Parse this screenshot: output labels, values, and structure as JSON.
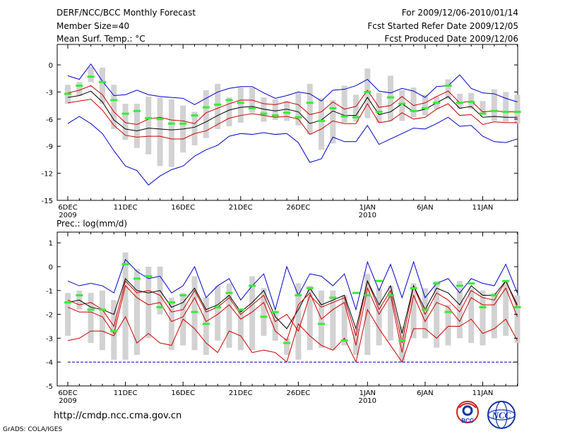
{
  "header": {
    "title": "DERF/NCC/BCC Monthly Forecast",
    "member_size": "Member Size=40",
    "variable": "Mean Surf. Temp.: °C",
    "period": "For 2009/12/06-2010/01/14",
    "start_date": "Fcst Started Refer Date 2009/12/05",
    "produced_date": "Fcst Produced Date 2009/12/06"
  },
  "footer": {
    "url": "http://cmdp.ncc.cma.gov.cn",
    "credit": "GrADS: COLA/IGES",
    "logo1_text": "BCC",
    "logo2_text": "NCC"
  },
  "colors": {
    "box": "#d2d2d2",
    "ensemble_max_min": "#0000cc",
    "spread": "#cc0000",
    "mean": "#000000",
    "median": "#33ee33",
    "logo_red": "#cc2222",
    "logo_blue": "#1133aa"
  },
  "chart_data": [
    {
      "type": "line",
      "title": "Mean Surf. Temp.: °C",
      "days": 40,
      "x_tick_labels": [
        {
          "day": 0,
          "label": "6DEC",
          "sub": "2009"
        },
        {
          "day": 5,
          "label": "11DEC"
        },
        {
          "day": 10,
          "label": "16DEC"
        },
        {
          "day": 15,
          "label": "21DEC"
        },
        {
          "day": 20,
          "label": "26DEC"
        },
        {
          "day": 26,
          "label": "1JAN",
          "sub": "2010"
        },
        {
          "day": 31,
          "label": "6JAN"
        },
        {
          "day": 36,
          "label": "11JAN"
        }
      ],
      "ylim": [
        -15,
        1.5
      ],
      "yticks": [
        0,
        -3,
        -6,
        -9,
        -12,
        -15
      ],
      "series": [
        {
          "name": "max",
          "color": "blue",
          "values": [
            -1.2,
            -1.6,
            0.1,
            -1.8,
            -3.4,
            -3.3,
            -2.8,
            -3.3,
            -3.5,
            -3.6,
            -3.7,
            -4.4,
            -3.7,
            -3.0,
            -2.6,
            -2.4,
            -2.4,
            -3.1,
            -3.7,
            -3.4,
            -3.0,
            -3.2,
            -4.0,
            -2.8,
            -2.7,
            -2.3,
            -1.6,
            -2.9,
            -3.1,
            -2.6,
            -2.9,
            -3.6,
            -2.4,
            -2.3,
            -1.1,
            -2.6,
            -3.1,
            -3.2,
            -3.7,
            -4.1
          ]
        },
        {
          "name": "upper",
          "color": "red",
          "values": [
            -3.1,
            -2.8,
            -2.3,
            -3.3,
            -5.2,
            -6.4,
            -6.6,
            -6.0,
            -5.8,
            -6.1,
            -6.2,
            -6.5,
            -5.3,
            -4.8,
            -4.3,
            -3.9,
            -3.9,
            -4.3,
            -4.4,
            -4.1,
            -4.4,
            -5.5,
            -5.2,
            -4.1,
            -4.9,
            -4.6,
            -2.8,
            -4.7,
            -4.5,
            -3.5,
            -4.5,
            -4.2,
            -3.5,
            -2.9,
            -4.2,
            -4.0,
            -5.2,
            -5.1,
            -5.2,
            -5.2
          ]
        },
        {
          "name": "mean",
          "color": "black",
          "values": [
            -3.6,
            -3.4,
            -2.9,
            -4.1,
            -6.1,
            -7.1,
            -7.3,
            -7.0,
            -7.1,
            -7.2,
            -7.1,
            -6.9,
            -6.3,
            -5.6,
            -5.0,
            -4.7,
            -4.6,
            -4.9,
            -5.1,
            -4.9,
            -5.2,
            -6.5,
            -6.1,
            -5.1,
            -5.6,
            -5.6,
            -3.6,
            -5.5,
            -5.2,
            -4.3,
            -5.2,
            -4.9,
            -4.2,
            -3.5,
            -4.8,
            -4.6,
            -5.8,
            -5.7,
            -5.8,
            -5.8
          ]
        },
        {
          "name": "lower",
          "color": "red",
          "values": [
            -4.2,
            -4.0,
            -3.8,
            -5.0,
            -6.7,
            -7.8,
            -8.0,
            -7.9,
            -7.9,
            -8.2,
            -8.2,
            -7.6,
            -7.3,
            -6.6,
            -5.9,
            -5.6,
            -5.4,
            -5.6,
            -5.8,
            -5.7,
            -6.0,
            -7.7,
            -7.1,
            -6.2,
            -6.5,
            -6.5,
            -4.3,
            -6.4,
            -6.2,
            -5.3,
            -6.0,
            -5.8,
            -4.9,
            -4.3,
            -5.6,
            -5.5,
            -6.6,
            -6.3,
            -6.4,
            -6.4
          ]
        },
        {
          "name": "min",
          "color": "blue",
          "values": [
            -6.5,
            -5.7,
            -6.5,
            -7.6,
            -9.5,
            -11.2,
            -11.7,
            -13.3,
            -12.3,
            -11.6,
            -11.2,
            -10.1,
            -9.4,
            -8.9,
            -7.9,
            -7.6,
            -7.7,
            -7.5,
            -7.7,
            -7.6,
            -8.6,
            -10.8,
            -10.4,
            -8.0,
            -8.5,
            -8.5,
            -6.7,
            -8.8,
            -8.2,
            -7.6,
            -7.0,
            -7.1,
            -6.5,
            -5.8,
            -6.8,
            -6.7,
            -7.9,
            -8.5,
            -8.6,
            -8.2
          ]
        },
        {
          "name": "median",
          "color": "green",
          "values": [
            -3.2,
            -2.3,
            -1.3,
            -1.9,
            -3.9,
            -5.4,
            -5.1,
            -5.9,
            -6.0,
            -6.5,
            -6.5,
            -5.6,
            -4.7,
            -4.4,
            -3.9,
            -4.2,
            -4.8,
            -5.4,
            -5.6,
            -5.3,
            -5.8,
            -4.2,
            -6.2,
            -4.8,
            -5.7,
            -5.8,
            -3.0,
            -5.2,
            -3.6,
            -4.3,
            -5.1,
            -4.8,
            -4.2,
            -2.3,
            -4.2,
            -4.1,
            -5.4,
            -5.1,
            -5.2,
            -5.2
          ]
        }
      ],
      "boxes": [
        [
          -2.2,
          -4.3
        ],
        [
          -1.9,
          -3.4
        ],
        [
          -0.2,
          -1.9
        ],
        [
          -0.3,
          -4.3
        ],
        [
          -2.2,
          -7.1
        ],
        [
          -4.3,
          -8.3
        ],
        [
          -4.3,
          -9.2
        ],
        [
          -3.5,
          -9.9
        ],
        [
          -3.6,
          -11.2
        ],
        [
          -3.8,
          -11.3
        ],
        [
          -4.5,
          -9.7
        ],
        [
          -5.2,
          -8.9
        ],
        [
          -2.8,
          -8.1
        ],
        [
          -2.1,
          -7.1
        ],
        [
          -3.6,
          -6.8
        ],
        [
          -2.5,
          -6.4
        ],
        [
          -2.5,
          -5.3
        ],
        [
          -3.6,
          -6.3
        ],
        [
          -3.8,
          -6.1
        ],
        [
          -4.0,
          -6.2
        ],
        [
          -3.1,
          -6.7
        ],
        [
          -2.1,
          -7.7
        ],
        [
          -3.7,
          -9.4
        ],
        [
          -3.9,
          -8.7
        ],
        [
          -2.3,
          -6.4
        ],
        [
          -3.3,
          -6.3
        ],
        [
          -0.4,
          -5.9
        ],
        [
          -3.1,
          -6.4
        ],
        [
          -1.2,
          -6.2
        ],
        [
          -2.8,
          -6.2
        ],
        [
          -2.5,
          -5.8
        ],
        [
          -3.3,
          -5.6
        ],
        [
          -3.5,
          -4.9
        ],
        [
          -1.6,
          -3.8
        ],
        [
          -3.2,
          -4.9
        ],
        [
          -3.1,
          -4.9
        ],
        [
          -4.0,
          -5.5
        ],
        [
          -2.7,
          -6.2
        ],
        [
          -3.0,
          -6.3
        ],
        [
          -3.3,
          -6.5
        ]
      ]
    },
    {
      "type": "line",
      "title": "Prec.: log(mm/d)",
      "days": 40,
      "x_tick_labels": [
        {
          "day": 0,
          "label": "6DEC",
          "sub": "2009"
        },
        {
          "day": 5,
          "label": "11DEC"
        },
        {
          "day": 10,
          "label": "16DEC"
        },
        {
          "day": 15,
          "label": "21DEC"
        },
        {
          "day": 20,
          "label": "26DEC"
        },
        {
          "day": 26,
          "label": "1JAN",
          "sub": "2010"
        },
        {
          "day": 31,
          "label": "6JAN"
        },
        {
          "day": 36,
          "label": "11JAN"
        }
      ],
      "ylim": [
        -5,
        1.3
      ],
      "yticks": [
        1,
        0,
        -1,
        -2,
        -3,
        -4,
        -5
      ],
      "baseline": -4,
      "series": [
        {
          "name": "max",
          "color": "blue",
          "values": [
            -0.6,
            -0.8,
            -0.7,
            -0.8,
            -1.1,
            0.3,
            -0.2,
            -0.5,
            -0.4,
            -1.1,
            -0.8,
            0.0,
            -1.3,
            -0.8,
            -0.5,
            -1.4,
            -0.8,
            -0.3,
            -1.8,
            0.0,
            -1.2,
            -0.3,
            -0.4,
            -0.8,
            -0.3,
            -1.8,
            0.2,
            -1.0,
            0.1,
            -1.3,
            0.2,
            -1.3,
            -0.7,
            -0.5,
            -1.1,
            -0.5,
            -0.7,
            -0.8,
            0.1,
            -1.1
          ]
        },
        {
          "name": "upper",
          "color": "red",
          "values": [
            -1.4,
            -1.6,
            -1.5,
            -1.8,
            -2.5,
            -0.6,
            -1.1,
            -1.0,
            -1.2,
            -1.9,
            -1.8,
            -1.0,
            -1.9,
            -1.7,
            -1.3,
            -2.0,
            -1.6,
            -1.2,
            -2.3,
            -2.0,
            -2.7,
            -1.2,
            -1.7,
            -1.5,
            -1.3,
            -2.9,
            -0.6,
            -1.8,
            -1.0,
            -3.2,
            -0.8,
            -2.0,
            -1.1,
            -1.4,
            -1.9,
            -1.0,
            -1.3,
            -1.4,
            -0.6,
            -1.7
          ]
        },
        {
          "name": "mean",
          "color": "black",
          "values": [
            -1.5,
            -1.4,
            -1.7,
            -1.8,
            -2.0,
            -0.5,
            -1.0,
            -1.1,
            -1.0,
            -1.7,
            -1.5,
            -0.9,
            -1.8,
            -1.6,
            -1.2,
            -1.9,
            -1.5,
            -1.0,
            -2.1,
            -2.6,
            -1.8,
            -0.9,
            -1.6,
            -1.4,
            -1.2,
            -2.6,
            -0.6,
            -1.6,
            -0.8,
            -2.8,
            -0.8,
            -1.8,
            -0.9,
            -1.1,
            -1.6,
            -0.8,
            -1.2,
            -1.2,
            -0.6,
            -1.6
          ]
        },
        {
          "name": "lower",
          "color": "red",
          "values": [
            -1.7,
            -1.9,
            -1.9,
            -2.1,
            -2.8,
            -0.8,
            -1.3,
            -1.6,
            -1.5,
            -2.3,
            -2.1,
            -1.3,
            -2.3,
            -2.0,
            -1.6,
            -2.2,
            -1.9,
            -1.5,
            -2.7,
            -3.1,
            -1.6,
            -1.1,
            -2.2,
            -1.8,
            -1.5,
            -3.3,
            -0.9,
            -2.0,
            -1.2,
            -3.6,
            -1.2,
            -2.3,
            -1.5,
            -1.7,
            -2.3,
            -1.3,
            -1.6,
            -1.6,
            -0.9,
            -2.1
          ]
        },
        {
          "name": "min",
          "color": "red",
          "values": [
            -3.1,
            -3.0,
            -2.7,
            -2.7,
            -2.9,
            -2.1,
            -3.2,
            -2.8,
            -3.2,
            -3.3,
            -2.2,
            -2.6,
            -3.2,
            -3.6,
            -2.7,
            -2.9,
            -3.6,
            -3.5,
            -3.6,
            -4.0,
            -2.4,
            -2.9,
            -3.3,
            -3.5,
            -3.0,
            -4.0,
            -1.8,
            -2.6,
            -3.3,
            -4.0,
            -2.6,
            -2.6,
            -3.0,
            -2.5,
            -2.5,
            -2.2,
            -2.8,
            -2.6,
            -2.2,
            -3.1
          ]
        },
        {
          "name": "median",
          "color": "green",
          "values": [
            -1.5,
            -1.2,
            -1.8,
            -1.8,
            -2.7,
            0.1,
            -0.5,
            -0.4,
            -1.7,
            -1.5,
            -1.2,
            -1.9,
            -2.4,
            -1.7,
            -1.1,
            -1.8,
            -0.8,
            -2.1,
            -1.9,
            -3.2,
            -1.2,
            -0.9,
            -2.4,
            -1.3,
            -3.1,
            -1.1,
            -1.2,
            -0.6,
            -1.2,
            -3.1,
            -0.9,
            -1.8,
            -0.7,
            -1.9,
            -0.8,
            -0.7,
            -1.7,
            -1.2,
            -0.6,
            -1.7
          ]
        }
      ],
      "boxes": [
        [
          -1.1,
          -2.9
        ],
        [
          -1.0,
          -1.8
        ],
        [
          -1.1,
          -3.2
        ],
        [
          -1.0,
          -3.5
        ],
        [
          -1.4,
          -3.9
        ],
        [
          0.6,
          -3.9
        ],
        [
          -0.1,
          -3.7
        ],
        [
          0.0,
          -3.0
        ],
        [
          0.0,
          -2.0
        ],
        [
          -1.3,
          -3.5
        ],
        [
          -1.1,
          -3.3
        ],
        [
          -0.4,
          -3.5
        ],
        [
          -1.3,
          -3.7
        ],
        [
          -0.8,
          -3.1
        ],
        [
          -0.7,
          -3.4
        ],
        [
          -1.8,
          -3.5
        ],
        [
          -0.4,
          -3.5
        ],
        [
          -0.9,
          -2.9
        ],
        [
          -1.9,
          -3.1
        ],
        [
          -3.0,
          -3.7
        ],
        [
          -0.7,
          -3.9
        ],
        [
          -0.8,
          -3.5
        ],
        [
          -1.0,
          -3.4
        ],
        [
          -1.0,
          -3.5
        ],
        [
          -1.2,
          -3.3
        ],
        [
          -2.6,
          -3.7
        ],
        [
          -0.3,
          -3.7
        ],
        [
          -0.9,
          -3.3
        ],
        [
          -0.8,
          -3.1
        ],
        [
          -2.5,
          -4.0
        ],
        [
          -0.7,
          -3.0
        ],
        [
          -0.9,
          -3.0
        ],
        [
          -0.6,
          -3.4
        ],
        [
          -1.6,
          -3.3
        ],
        [
          -0.6,
          -3.0
        ],
        [
          -0.9,
          -3.2
        ],
        [
          -1.0,
          -3.3
        ],
        [
          -1.1,
          -3.0
        ],
        [
          -0.6,
          -2.9
        ],
        [
          -1.2,
          -3.2
        ]
      ]
    }
  ]
}
